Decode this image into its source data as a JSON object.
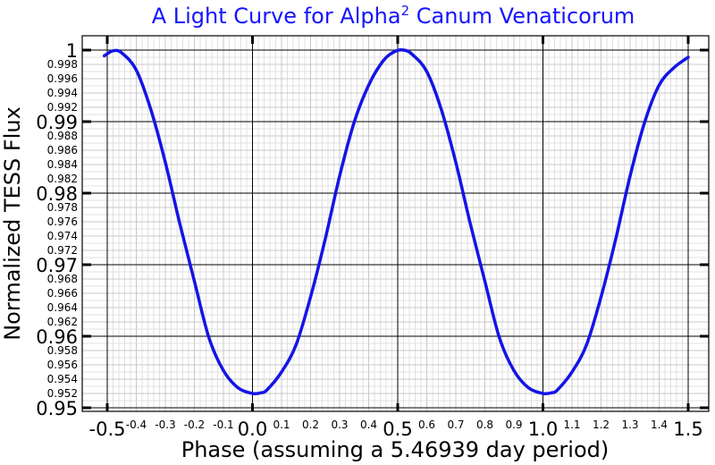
{
  "chart_data": {
    "type": "line",
    "title_main": "A Light Curve for Alpha",
    "title_sup": "2",
    "title_rest": " Canum Venaticorum",
    "xlabel": "Phase (assuming a 5.46939 day period)",
    "ylabel": "Normalized TESS Flux",
    "xlim": [
      -0.5,
      1.5
    ],
    "ylim": [
      0.95,
      1.0
    ],
    "grid": true,
    "x_major_ticks": [
      "-0.5",
      "0.0",
      "0.5",
      "1.0",
      "1.5"
    ],
    "x_minor_ticks": [
      "-0.4",
      "-0.3",
      "-0.2",
      "-0.1",
      "0.1",
      "0.2",
      "0.3",
      "0.4",
      "0.6",
      "0.7",
      "0.8",
      "0.9",
      "1.1",
      "1.2",
      "1.3",
      "1.4"
    ],
    "y_major_ticks": [
      "0.95",
      "0.96",
      "0.97",
      "0.98",
      "0.99",
      "1"
    ],
    "y_minor_ticks": [
      "0.952",
      "0.954",
      "0.956",
      "0.958",
      "0.962",
      "0.964",
      "0.966",
      "0.968",
      "0.972",
      "0.974",
      "0.976",
      "0.978",
      "0.982",
      "0.984",
      "0.986",
      "0.988",
      "0.992",
      "0.994",
      "0.996",
      "0.998"
    ],
    "series": [
      {
        "color": "#1414e6",
        "x": [
          -0.51,
          -0.48,
          -0.45,
          -0.4,
          -0.35,
          -0.3,
          -0.25,
          -0.2,
          -0.15,
          -0.1,
          -0.05,
          0.0,
          0.03,
          0.05,
          0.1,
          0.15,
          0.2,
          0.25,
          0.3,
          0.35,
          0.4,
          0.45,
          0.49,
          0.52,
          0.55,
          0.6,
          0.65,
          0.7,
          0.75,
          0.8,
          0.85,
          0.9,
          0.95,
          1.0,
          1.03,
          1.05,
          1.1,
          1.15,
          1.2,
          1.25,
          1.3,
          1.35,
          1.4,
          1.45,
          1.5
        ],
        "y": [
          0.9992,
          0.9999,
          0.9996,
          0.9972,
          0.9917,
          0.9843,
          0.9757,
          0.9677,
          0.9598,
          0.9552,
          0.9528,
          0.952,
          0.9521,
          0.9525,
          0.955,
          0.9588,
          0.9655,
          0.9735,
          0.9824,
          0.9899,
          0.9951,
          0.9985,
          0.9998,
          1.0,
          0.9994,
          0.997,
          0.9917,
          0.9843,
          0.9757,
          0.9677,
          0.9598,
          0.9552,
          0.9528,
          0.952,
          0.9521,
          0.9525,
          0.955,
          0.9588,
          0.9655,
          0.9735,
          0.9824,
          0.9899,
          0.9951,
          0.9975,
          0.999
        ]
      }
    ]
  }
}
